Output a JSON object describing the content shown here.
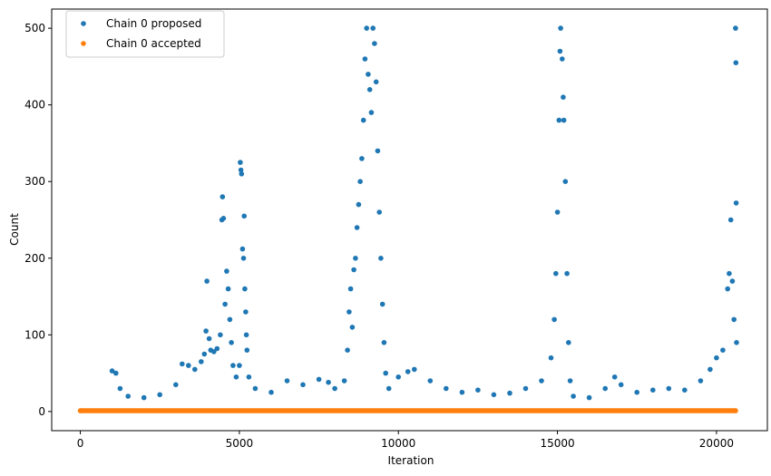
{
  "chart_data": {
    "type": "scatter",
    "xlabel": "Iteration",
    "ylabel": "Count",
    "xlim": [
      -900,
      21600
    ],
    "ylim": [
      -25,
      525
    ],
    "x_ticks": [
      0,
      5000,
      10000,
      15000,
      20000
    ],
    "x_tick_labels": [
      "0",
      "5000",
      "10000",
      "15000",
      "20000"
    ],
    "y_ticks": [
      0,
      100,
      200,
      300,
      400,
      500
    ],
    "y_tick_labels": [
      "0",
      "100",
      "200",
      "300",
      "400",
      "500"
    ],
    "legend_position": "top-left",
    "grid": false,
    "series": [
      {
        "name": "Chain 0 proposed",
        "color": "#1f77b4",
        "marker": "circle",
        "points": [
          [
            1000,
            53
          ],
          [
            1120,
            50
          ],
          [
            1250,
            30
          ],
          [
            1500,
            20
          ],
          [
            2000,
            18
          ],
          [
            2500,
            22
          ],
          [
            3000,
            35
          ],
          [
            3200,
            62
          ],
          [
            3400,
            60
          ],
          [
            3600,
            55
          ],
          [
            3800,
            65
          ],
          [
            3900,
            75
          ],
          [
            3950,
            105
          ],
          [
            3980,
            170
          ],
          [
            4050,
            95
          ],
          [
            4100,
            80
          ],
          [
            4200,
            78
          ],
          [
            4300,
            82
          ],
          [
            4400,
            100
          ],
          [
            4450,
            250
          ],
          [
            4470,
            280
          ],
          [
            4500,
            252
          ],
          [
            4550,
            140
          ],
          [
            4600,
            183
          ],
          [
            4650,
            160
          ],
          [
            4700,
            120
          ],
          [
            4750,
            90
          ],
          [
            4800,
            60
          ],
          [
            4900,
            45
          ],
          [
            5000,
            60
          ],
          [
            5030,
            325
          ],
          [
            5050,
            315
          ],
          [
            5070,
            310
          ],
          [
            5100,
            212
          ],
          [
            5130,
            200
          ],
          [
            5150,
            255
          ],
          [
            5170,
            160
          ],
          [
            5200,
            130
          ],
          [
            5220,
            100
          ],
          [
            5240,
            80
          ],
          [
            5300,
            45
          ],
          [
            5500,
            30
          ],
          [
            6000,
            25
          ],
          [
            6500,
            40
          ],
          [
            7000,
            35
          ],
          [
            7500,
            42
          ],
          [
            7800,
            38
          ],
          [
            8000,
            30
          ],
          [
            8300,
            40
          ],
          [
            8400,
            80
          ],
          [
            8450,
            130
          ],
          [
            8500,
            160
          ],
          [
            8550,
            110
          ],
          [
            8600,
            185
          ],
          [
            8650,
            200
          ],
          [
            8700,
            240
          ],
          [
            8750,
            270
          ],
          [
            8800,
            300
          ],
          [
            8850,
            330
          ],
          [
            8900,
            380
          ],
          [
            8950,
            460
          ],
          [
            9000,
            500
          ],
          [
            9050,
            440
          ],
          [
            9100,
            420
          ],
          [
            9150,
            390
          ],
          [
            9200,
            500
          ],
          [
            9250,
            480
          ],
          [
            9300,
            430
          ],
          [
            9350,
            340
          ],
          [
            9400,
            260
          ],
          [
            9450,
            200
          ],
          [
            9500,
            140
          ],
          [
            9550,
            90
          ],
          [
            9600,
            50
          ],
          [
            9700,
            30
          ],
          [
            10000,
            45
          ],
          [
            10300,
            52
          ],
          [
            10500,
            55
          ],
          [
            11000,
            40
          ],
          [
            11500,
            30
          ],
          [
            12000,
            25
          ],
          [
            12500,
            28
          ],
          [
            13000,
            22
          ],
          [
            13500,
            24
          ],
          [
            14000,
            30
          ],
          [
            14500,
            40
          ],
          [
            14800,
            70
          ],
          [
            14900,
            120
          ],
          [
            14950,
            180
          ],
          [
            15000,
            260
          ],
          [
            15050,
            380
          ],
          [
            15080,
            470
          ],
          [
            15100,
            500
          ],
          [
            15150,
            460
          ],
          [
            15180,
            410
          ],
          [
            15200,
            380
          ],
          [
            15250,
            300
          ],
          [
            15300,
            180
          ],
          [
            15350,
            90
          ],
          [
            15400,
            40
          ],
          [
            15500,
            20
          ],
          [
            16000,
            18
          ],
          [
            16500,
            30
          ],
          [
            16800,
            45
          ],
          [
            17000,
            35
          ],
          [
            17500,
            25
          ],
          [
            18000,
            28
          ],
          [
            18500,
            30
          ],
          [
            19000,
            28
          ],
          [
            19500,
            40
          ],
          [
            19800,
            55
          ],
          [
            20000,
            70
          ],
          [
            20200,
            80
          ],
          [
            20350,
            160
          ],
          [
            20400,
            180
          ],
          [
            20450,
            250
          ],
          [
            20500,
            170
          ],
          [
            20550,
            120
          ],
          [
            20600,
            500
          ],
          [
            20610,
            455
          ],
          [
            20620,
            272
          ],
          [
            20630,
            90
          ]
        ]
      },
      {
        "name": "Chain 0 accepted",
        "color": "#ff7f0e",
        "marker": "circle",
        "points": [
          [
            0,
            1
          ],
          [
            20600,
            1
          ]
        ]
      }
    ]
  }
}
